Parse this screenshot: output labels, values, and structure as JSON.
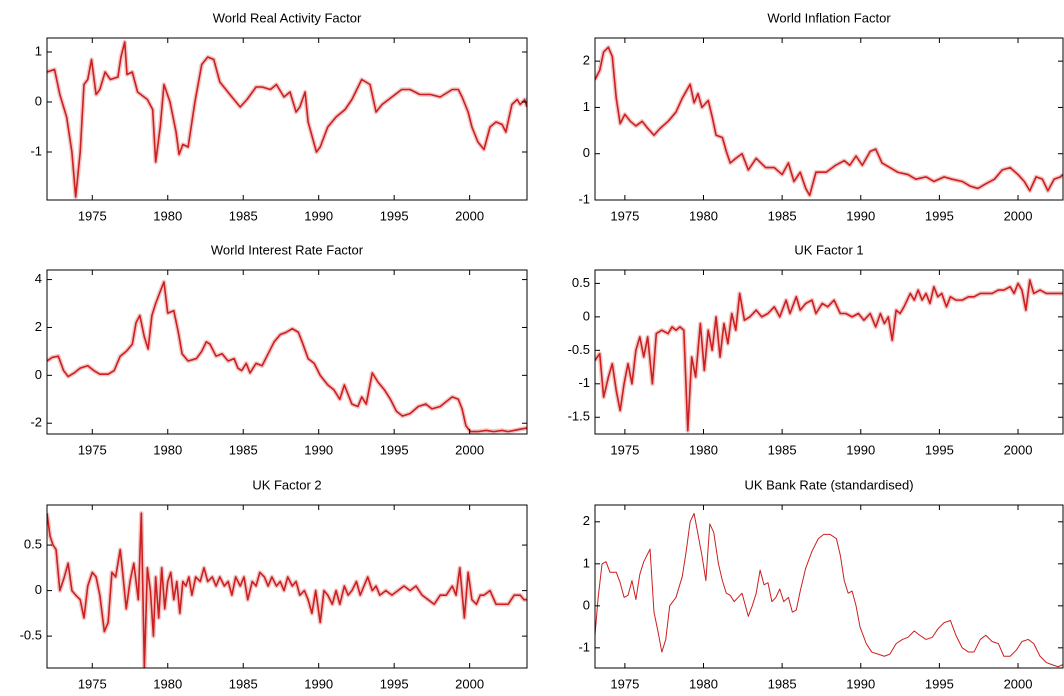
{
  "chart_data": [
    {
      "type": "line",
      "title": "World Real Activity Factor",
      "color": "#cc1f1f",
      "xlim": [
        1972,
        2003.8
      ],
      "xticks": [
        1975,
        1980,
        1985,
        1990,
        1995,
        2000
      ],
      "ylim": [
        -1.96,
        1.28
      ],
      "yticks": [
        -1,
        0,
        1
      ],
      "x": [
        1972.0,
        1972.5,
        1972.85,
        1973.3,
        1973.65,
        1973.9,
        1974.2,
        1974.45,
        1974.7,
        1974.95,
        1975.25,
        1975.5,
        1975.85,
        1976.2,
        1976.7,
        1976.9,
        1977.15,
        1977.3,
        1977.65,
        1978.0,
        1978.65,
        1979.0,
        1979.2,
        1979.5,
        1979.75,
        1980.15,
        1980.55,
        1980.75,
        1981.0,
        1981.35,
        1981.8,
        1982.25,
        1982.65,
        1983.05,
        1983.45,
        1984.25,
        1984.8,
        1985.25,
        1985.85,
        1986.25,
        1986.8,
        1987.2,
        1987.7,
        1988.1,
        1988.5,
        1988.75,
        1989.1,
        1989.3,
        1989.85,
        1990.1,
        1990.6,
        1991.15,
        1991.75,
        1992.2,
        1992.85,
        1993.4,
        1993.8,
        1994.2,
        1994.85,
        1995.5,
        1996.05,
        1996.7,
        1997.4,
        1998.05,
        1998.85,
        1999.25,
        1999.5,
        1999.9,
        2000.15,
        2000.55,
        2000.95,
        2001.35,
        2001.75,
        2002.15,
        2002.4,
        2002.8,
        2003.15,
        2003.35,
        2003.65,
        2003.8
      ],
      "values": [
        0.6,
        0.65,
        0.15,
        -0.3,
        -1.0,
        -1.9,
        -1.0,
        0.35,
        0.45,
        0.85,
        0.15,
        0.25,
        0.6,
        0.45,
        0.5,
        0.9,
        1.2,
        0.55,
        0.6,
        0.2,
        0.05,
        -0.15,
        -1.2,
        -0.5,
        0.35,
        0.0,
        -0.6,
        -1.05,
        -0.85,
        -0.9,
        0.0,
        0.75,
        0.9,
        0.85,
        0.4,
        0.1,
        -0.1,
        0.05,
        0.3,
        0.3,
        0.25,
        0.35,
        0.1,
        0.2,
        -0.2,
        -0.1,
        0.2,
        -0.4,
        -1.0,
        -0.9,
        -0.5,
        -0.3,
        -0.15,
        0.05,
        0.45,
        0.35,
        -0.2,
        -0.05,
        0.1,
        0.25,
        0.25,
        0.15,
        0.15,
        0.1,
        0.25,
        0.25,
        0.1,
        -0.2,
        -0.5,
        -0.8,
        -0.95,
        -0.5,
        -0.4,
        -0.45,
        -0.6,
        -0.05,
        0.05,
        -0.05,
        0.05,
        -0.1
      ]
    },
    {
      "type": "line",
      "title": "World Inflation Factor",
      "color": "#cc1f1f",
      "xlim": [
        1973.1,
        2002.86
      ],
      "xticks": [
        1975,
        1980,
        1985,
        1990,
        1995,
        2000
      ],
      "ylim": [
        -1,
        2.5
      ],
      "yticks": [
        -1,
        0,
        1,
        2
      ],
      "x": [
        1973.1,
        1973.4,
        1973.65,
        1973.95,
        1974.2,
        1974.45,
        1974.7,
        1975.0,
        1975.35,
        1975.7,
        1976.1,
        1976.45,
        1976.85,
        1977.25,
        1977.75,
        1978.25,
        1978.65,
        1979.15,
        1979.4,
        1979.65,
        1979.9,
        1980.3,
        1980.55,
        1980.8,
        1981.2,
        1981.45,
        1981.7,
        1982.05,
        1982.45,
        1982.85,
        1983.35,
        1983.95,
        1984.5,
        1985.0,
        1985.4,
        1985.75,
        1986.15,
        1986.5,
        1986.75,
        1987.15,
        1987.8,
        1988.4,
        1988.95,
        1989.3,
        1989.7,
        1990.1,
        1990.6,
        1990.95,
        1991.35,
        1991.85,
        1992.35,
        1993.0,
        1993.5,
        1994.15,
        1994.65,
        1995.3,
        1995.8,
        1996.45,
        1996.95,
        1997.45,
        1997.95,
        1998.5,
        1999.0,
        1999.5,
        2000.0,
        2000.4,
        2000.75,
        2001.15,
        2001.55,
        2001.9,
        2002.3,
        2002.7,
        2002.85
      ],
      "values": [
        1.6,
        1.8,
        2.2,
        2.3,
        2.1,
        1.2,
        0.65,
        0.85,
        0.7,
        0.6,
        0.7,
        0.55,
        0.4,
        0.55,
        0.7,
        0.9,
        1.2,
        1.5,
        1.1,
        1.3,
        1.0,
        1.15,
        0.8,
        0.4,
        0.35,
        0.05,
        -0.2,
        -0.1,
        0.0,
        -0.35,
        -0.1,
        -0.3,
        -0.3,
        -0.45,
        -0.2,
        -0.6,
        -0.4,
        -0.75,
        -0.9,
        -0.4,
        -0.4,
        -0.25,
        -0.15,
        -0.25,
        -0.05,
        -0.25,
        0.05,
        0.1,
        -0.2,
        -0.3,
        -0.4,
        -0.45,
        -0.55,
        -0.5,
        -0.6,
        -0.5,
        -0.55,
        -0.6,
        -0.7,
        -0.75,
        -0.65,
        -0.55,
        -0.35,
        -0.3,
        -0.45,
        -0.6,
        -0.8,
        -0.5,
        -0.55,
        -0.8,
        -0.55,
        -0.5,
        -0.45
      ]
    },
    {
      "type": "line",
      "title": "World Interest Rate Factor",
      "color": "#cc1f1f",
      "xlim": [
        1972,
        2003.8
      ],
      "xticks": [
        1975,
        1980,
        1985,
        1990,
        1995,
        2000
      ],
      "ylim": [
        -2.45,
        4.4
      ],
      "yticks": [
        -2,
        0,
        2,
        4
      ],
      "x": [
        1972.0,
        1972.35,
        1972.75,
        1973.1,
        1973.4,
        1973.8,
        1974.2,
        1974.7,
        1975.1,
        1975.5,
        1976.05,
        1976.45,
        1976.85,
        1977.25,
        1977.65,
        1977.9,
        1978.15,
        1978.45,
        1978.7,
        1978.95,
        1979.2,
        1979.5,
        1979.75,
        1980.0,
        1980.4,
        1980.7,
        1980.95,
        1981.35,
        1981.9,
        1982.25,
        1982.55,
        1982.8,
        1983.2,
        1983.6,
        1984.0,
        1984.4,
        1984.65,
        1984.9,
        1985.2,
        1985.45,
        1985.85,
        1986.25,
        1986.65,
        1987.05,
        1987.45,
        1987.85,
        1988.25,
        1988.65,
        1988.9,
        1989.3,
        1989.7,
        1990.1,
        1990.6,
        1991.0,
        1991.4,
        1991.7,
        1991.95,
        1992.2,
        1992.6,
        1992.85,
        1993.15,
        1993.55,
        1993.95,
        1994.35,
        1994.75,
        1995.15,
        1995.55,
        1996.05,
        1996.6,
        1997.1,
        1997.5,
        1998.05,
        1998.45,
        1998.85,
        1999.25,
        1999.5,
        1999.75,
        2000.05,
        2000.55,
        2001.1,
        2001.6,
        2002.15,
        2002.55,
        2002.95,
        2003.35,
        2003.8
      ],
      "values": [
        0.6,
        0.75,
        0.8,
        0.2,
        -0.05,
        0.1,
        0.3,
        0.4,
        0.2,
        0.05,
        0.05,
        0.2,
        0.8,
        1.0,
        1.3,
        2.2,
        2.5,
        1.6,
        1.1,
        2.5,
        3.0,
        3.5,
        3.9,
        2.6,
        2.7,
        1.8,
        0.9,
        0.6,
        0.7,
        1.0,
        1.4,
        1.3,
        0.8,
        0.9,
        0.6,
        0.7,
        0.3,
        0.2,
        0.5,
        0.1,
        0.5,
        0.4,
        0.9,
        1.4,
        1.7,
        1.8,
        1.95,
        1.8,
        1.4,
        0.7,
        0.5,
        0.0,
        -0.4,
        -0.6,
        -1.0,
        -0.4,
        -0.8,
        -1.2,
        -1.3,
        -0.9,
        -1.2,
        0.1,
        -0.3,
        -0.6,
        -1.0,
        -1.5,
        -1.7,
        -1.6,
        -1.3,
        -1.2,
        -1.4,
        -1.3,
        -1.1,
        -0.9,
        -1.0,
        -1.4,
        -2.1,
        -2.35,
        -2.35,
        -2.3,
        -2.35,
        -2.3,
        -2.35,
        -2.3,
        -2.25,
        -2.2
      ]
    },
    {
      "type": "line",
      "title": "UK Factor 1",
      "color": "#cc1f1f",
      "xlim": [
        1973.1,
        2002.86
      ],
      "xticks": [
        1975,
        1980,
        1985,
        1990,
        1995,
        2000
      ],
      "ylim": [
        -1.75,
        0.7
      ],
      "yticks": [
        -1.5,
        -1,
        -0.5,
        0,
        0.5
      ],
      "x": [
        1973.1,
        1973.4,
        1973.65,
        1973.95,
        1974.2,
        1974.45,
        1974.7,
        1974.95,
        1975.2,
        1975.45,
        1975.7,
        1975.95,
        1976.2,
        1976.45,
        1976.75,
        1977.0,
        1977.35,
        1977.75,
        1978.0,
        1978.25,
        1978.5,
        1978.75,
        1979.0,
        1979.25,
        1979.5,
        1979.8,
        1980.05,
        1980.3,
        1980.55,
        1980.8,
        1981.05,
        1981.3,
        1981.55,
        1981.8,
        1982.05,
        1982.3,
        1982.6,
        1982.95,
        1983.35,
        1983.7,
        1984.1,
        1984.5,
        1984.85,
        1985.25,
        1985.5,
        1985.9,
        1986.15,
        1986.5,
        1986.9,
        1987.15,
        1987.55,
        1987.9,
        1988.3,
        1988.7,
        1989.05,
        1989.45,
        1989.85,
        1990.2,
        1990.6,
        1990.95,
        1991.25,
        1991.5,
        1991.75,
        1992.0,
        1992.25,
        1992.5,
        1992.75,
        1993.15,
        1993.4,
        1993.65,
        1993.9,
        1994.15,
        1994.4,
        1994.65,
        1994.9,
        1995.15,
        1995.45,
        1995.7,
        1996.05,
        1996.45,
        1996.85,
        1997.2,
        1997.6,
        1997.95,
        1998.35,
        1998.75,
        1999.1,
        1999.5,
        1999.75,
        2000.0,
        2000.25,
        2000.5,
        2000.75,
        2001.0,
        2001.4,
        2001.8,
        2002.15,
        2002.55,
        2002.85
      ],
      "values": [
        -0.65,
        -0.55,
        -1.2,
        -0.9,
        -0.7,
        -1.1,
        -1.4,
        -1.0,
        -0.7,
        -1.0,
        -0.5,
        -0.3,
        -0.6,
        -0.3,
        -1.0,
        -0.25,
        -0.2,
        -0.25,
        -0.15,
        -0.2,
        -0.15,
        -0.2,
        -1.7,
        -0.6,
        -0.9,
        -0.1,
        -0.8,
        -0.2,
        -0.5,
        0.0,
        -0.6,
        -0.1,
        -0.4,
        0.05,
        -0.2,
        0.35,
        -0.05,
        0.0,
        0.1,
        0.0,
        0.05,
        0.15,
        0.0,
        0.25,
        0.05,
        0.3,
        0.1,
        0.2,
        0.25,
        0.05,
        0.2,
        0.15,
        0.25,
        0.05,
        0.05,
        0.0,
        0.05,
        -0.05,
        0.05,
        -0.15,
        0.05,
        -0.1,
        0.0,
        -0.35,
        0.1,
        0.05,
        0.15,
        0.35,
        0.25,
        0.4,
        0.25,
        0.35,
        0.2,
        0.45,
        0.3,
        0.35,
        0.15,
        0.3,
        0.25,
        0.25,
        0.3,
        0.3,
        0.35,
        0.35,
        0.35,
        0.4,
        0.4,
        0.45,
        0.35,
        0.5,
        0.4,
        0.1,
        0.55,
        0.35,
        0.4,
        0.35,
        0.35,
        0.35,
        0.35
      ]
    },
    {
      "type": "line",
      "title": "UK Factor 2",
      "color": "#cc1f1f",
      "xlim": [
        1972,
        2003.8
      ],
      "xticks": [
        1975,
        1980,
        1985,
        1990,
        1995,
        2000
      ],
      "ylim": [
        -0.85,
        0.94
      ],
      "yticks": [
        -0.5,
        0,
        0.5
      ],
      "x": [
        1972.0,
        1972.2,
        1972.4,
        1972.6,
        1972.85,
        1973.15,
        1973.4,
        1973.65,
        1973.9,
        1974.2,
        1974.45,
        1974.7,
        1975.0,
        1975.25,
        1975.5,
        1975.8,
        1976.05,
        1976.3,
        1976.55,
        1976.85,
        1976.95,
        1977.25,
        1977.5,
        1977.75,
        1978.05,
        1978.25,
        1978.45,
        1978.65,
        1978.85,
        1979.05,
        1979.2,
        1979.4,
        1979.6,
        1979.8,
        1980.0,
        1980.2,
        1980.4,
        1980.6,
        1980.8,
        1981.0,
        1981.2,
        1981.4,
        1981.6,
        1981.85,
        1982.15,
        1982.4,
        1982.65,
        1982.95,
        1983.2,
        1983.45,
        1983.75,
        1984.0,
        1984.25,
        1984.5,
        1984.8,
        1985.05,
        1985.3,
        1985.6,
        1985.85,
        1986.1,
        1986.4,
        1986.65,
        1986.9,
        1987.2,
        1987.45,
        1987.7,
        1987.95,
        1988.25,
        1988.5,
        1988.75,
        1989.05,
        1989.3,
        1989.55,
        1989.8,
        1990.1,
        1990.35,
        1990.6,
        1990.9,
        1991.15,
        1991.4,
        1991.7,
        1991.95,
        1992.2,
        1992.5,
        1992.75,
        1993.0,
        1993.25,
        1993.55,
        1993.8,
        1994.05,
        1994.45,
        1994.85,
        1995.25,
        1995.65,
        1996.05,
        1996.45,
        1996.85,
        1997.25,
        1997.65,
        1998.05,
        1998.45,
        1998.85,
        1999.1,
        1999.35,
        1999.65,
        1999.9,
        2000.15,
        2000.45,
        2000.7,
        2000.95,
        2001.35,
        2001.75,
        2002.15,
        2002.55,
        2002.95,
        2003.35,
        2003.6,
        2003.8
      ],
      "values": [
        0.85,
        0.6,
        0.5,
        0.45,
        0.0,
        0.15,
        0.3,
        0.0,
        -0.05,
        -0.1,
        -0.3,
        0.05,
        0.2,
        0.15,
        -0.05,
        -0.45,
        -0.35,
        0.2,
        0.15,
        0.45,
        0.3,
        -0.2,
        0.1,
        0.3,
        -0.1,
        0.85,
        -0.85,
        0.25,
        0.0,
        -0.5,
        0.15,
        -0.3,
        0.25,
        -0.2,
        0.1,
        0.2,
        -0.1,
        0.1,
        -0.25,
        0.1,
        0.05,
        0.15,
        -0.05,
        0.15,
        0.1,
        0.25,
        0.1,
        0.15,
        0.05,
        0.15,
        0.05,
        0.1,
        -0.05,
        0.15,
        0.05,
        0.15,
        -0.1,
        0.1,
        0.05,
        0.2,
        0.15,
        0.05,
        0.15,
        0.05,
        0.1,
        0.0,
        0.15,
        0.05,
        0.1,
        -0.05,
        0.0,
        -0.1,
        -0.25,
        0.0,
        -0.35,
        0.0,
        -0.05,
        -0.15,
        0.0,
        -0.15,
        0.05,
        -0.05,
        0.0,
        0.1,
        -0.05,
        0.05,
        0.15,
        0.0,
        0.05,
        -0.05,
        0.0,
        -0.05,
        0.0,
        0.05,
        0.0,
        0.05,
        -0.05,
        -0.1,
        -0.15,
        -0.05,
        -0.05,
        0.05,
        -0.05,
        0.25,
        -0.3,
        0.2,
        -0.1,
        -0.15,
        -0.05,
        -0.05,
        0.0,
        -0.15,
        -0.15,
        -0.15,
        -0.05,
        -0.05,
        -0.1,
        -0.1
      ]
    },
    {
      "type": "line",
      "title": "UK Bank Rate (standardised)",
      "color": "#cc1f1f",
      "xlim": [
        1973.1,
        2002.86
      ],
      "xticks": [
        1975,
        1980,
        1985,
        1990,
        1995,
        2000
      ],
      "ylim": [
        -1.48,
        2.4
      ],
      "yticks": [
        -1,
        0,
        1,
        2
      ],
      "x": [
        1973.1,
        1973.3,
        1973.55,
        1973.8,
        1974.05,
        1974.45,
        1974.7,
        1974.95,
        1975.2,
        1975.45,
        1975.7,
        1975.95,
        1976.2,
        1976.6,
        1976.85,
        1977.1,
        1977.35,
        1977.6,
        1977.85,
        1978.25,
        1978.65,
        1978.9,
        1979.15,
        1979.4,
        1979.65,
        1979.9,
        1980.15,
        1980.4,
        1980.65,
        1980.95,
        1981.2,
        1981.45,
        1981.7,
        1981.95,
        1982.2,
        1982.45,
        1982.85,
        1983.1,
        1983.35,
        1983.6,
        1983.85,
        1984.1,
        1984.35,
        1984.6,
        1984.85,
        1985.1,
        1985.4,
        1985.65,
        1985.9,
        1986.15,
        1986.5,
        1986.9,
        1987.3,
        1987.65,
        1988.05,
        1988.45,
        1988.7,
        1988.95,
        1989.2,
        1989.45,
        1989.7,
        1989.95,
        1990.35,
        1990.7,
        1991.1,
        1991.5,
        1991.85,
        1992.25,
        1992.65,
        1993.0,
        1993.4,
        1993.75,
        1994.15,
        1994.55,
        1994.9,
        1995.3,
        1995.7,
        1996.05,
        1996.45,
        1996.85,
        1997.2,
        1997.6,
        1997.95,
        1998.35,
        1998.75,
        1999.1,
        1999.5,
        1999.9,
        2000.25,
        2000.65,
        2001.0,
        2001.4,
        2001.8,
        2002.15,
        2002.55,
        2002.85
      ],
      "values": [
        -0.7,
        0.2,
        1.0,
        1.05,
        0.8,
        0.8,
        0.55,
        0.2,
        0.25,
        0.6,
        0.15,
        0.75,
        1.05,
        1.35,
        -0.15,
        -0.6,
        -1.1,
        -0.8,
        0.0,
        0.2,
        0.7,
        1.3,
        2.0,
        2.2,
        1.7,
        1.2,
        0.6,
        1.95,
        1.75,
        1.0,
        0.6,
        0.3,
        0.25,
        0.1,
        0.2,
        0.3,
        -0.25,
        0.0,
        0.3,
        0.85,
        0.5,
        0.55,
        0.1,
        0.2,
        0.4,
        0.1,
        0.2,
        -0.15,
        -0.1,
        0.35,
        0.9,
        1.3,
        1.6,
        1.7,
        1.7,
        1.6,
        1.2,
        0.6,
        0.3,
        0.35,
        0.0,
        -0.5,
        -0.9,
        -1.1,
        -1.15,
        -1.2,
        -1.15,
        -0.9,
        -0.8,
        -0.75,
        -0.6,
        -0.7,
        -0.8,
        -0.75,
        -0.55,
        -0.4,
        -0.35,
        -0.7,
        -1.0,
        -1.1,
        -1.1,
        -0.8,
        -0.7,
        -0.85,
        -0.9,
        -1.2,
        -1.2,
        -1.05,
        -0.85,
        -0.8,
        -0.9,
        -1.2,
        -1.35,
        -1.4,
        -1.45,
        -1.4
      ]
    }
  ]
}
